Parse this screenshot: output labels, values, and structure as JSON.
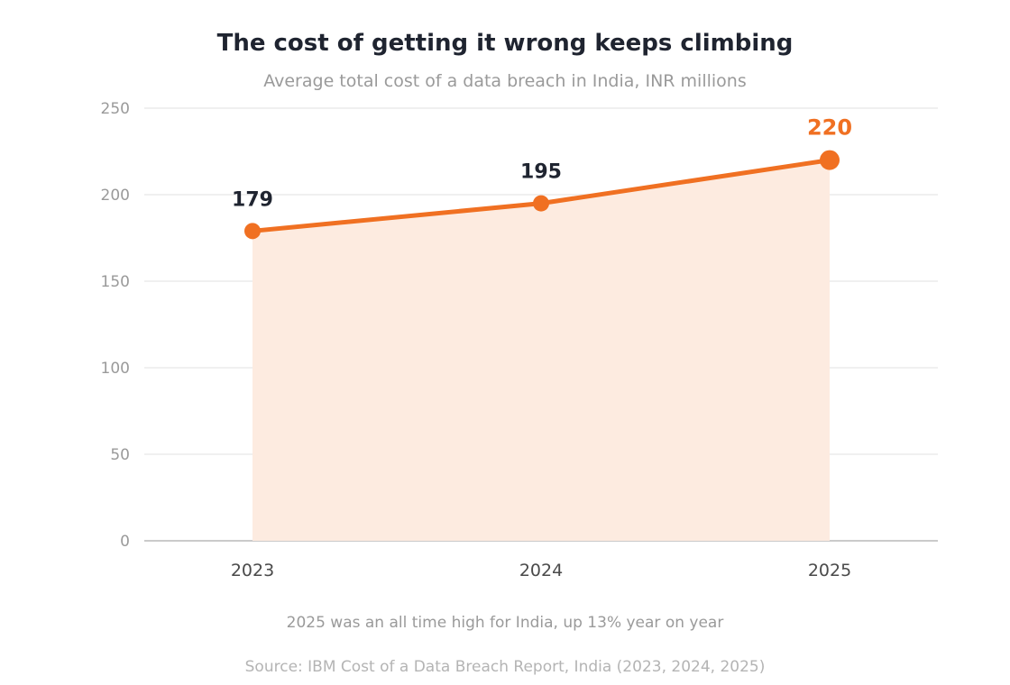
{
  "chart_data": {
    "type": "line",
    "title": "The cost of getting it wrong keeps climbing",
    "subtitle": "Average total cost of a data breach in India, INR millions",
    "x": [
      "2023",
      "2024",
      "2025"
    ],
    "series": [
      {
        "values": [
          179,
          195,
          220
        ],
        "color": "#f07022",
        "fill": "#fdebe0"
      }
    ],
    "data_labels": [
      "179",
      "195",
      "220"
    ],
    "highlight_index": 2,
    "highlight_color": "#f07022",
    "ylim": [
      0,
      250
    ],
    "yticks": [
      "0",
      "50",
      "100",
      "150",
      "200",
      "250"
    ],
    "grid": true,
    "legend": "none",
    "xlabel": "",
    "ylabel": ""
  },
  "footer": {
    "note": "2025 was an all time high for India, up 13% year on year",
    "source": "Source: IBM Cost of a Data Breach Report, India (2023, 2024, 2025)"
  }
}
